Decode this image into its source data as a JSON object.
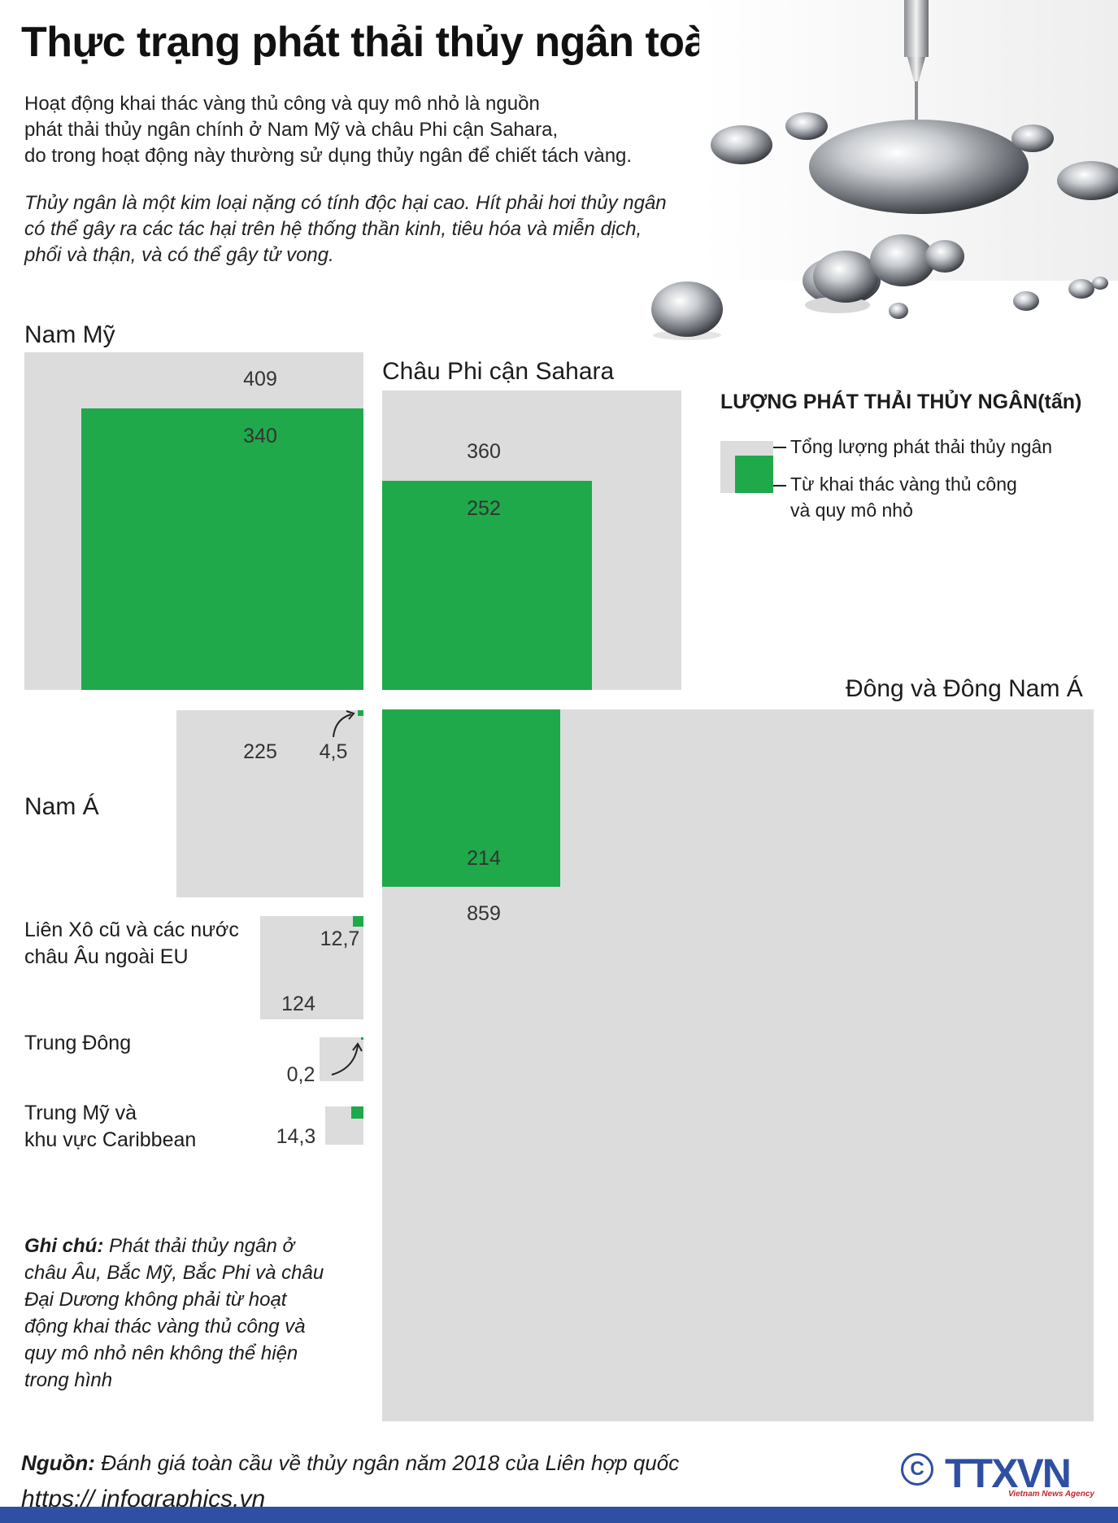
{
  "header": {
    "title": "Thực trạng phát thải thủy ngân toàn cầu",
    "intro_lines": [
      "Hoạt động khai thác vàng thủ công và quy mô nhỏ là nguồn",
      "phát thải thủy ngân chính ở Nam Mỹ và châu Phi cận Sahara,",
      "do trong hoạt động này thường sử dụng thủy ngân để chiết tách vàng."
    ],
    "warning_lines": [
      "Thủy ngân là một kim loại nặng có tính độc hại cao. Hít phải hơi thủy ngân",
      "có thể gây ra các tác hại trên hệ thống thần kinh, tiêu hóa và miễn dịch,",
      "phổi và thận, và có thể gây tử vong."
    ]
  },
  "legend": {
    "title": "LƯỢNG PHÁT THẢI THỦY NGÂN(tấn)",
    "total_label": "Tổng lượng phát thải thủy ngân",
    "asgm_label_1": "Từ khai thác vàng thủ công",
    "asgm_label_2": "và quy mô nhỏ"
  },
  "colors": {
    "total": "#dcdcdc",
    "asgm": "#1fa94b",
    "brand": "#2f4fa3"
  },
  "chart_data": {
    "type": "proportional-area squares",
    "unit": "tấn",
    "series": [
      {
        "name": "Tổng lượng phát thải thủy ngân"
      },
      {
        "name": "Từ khai thác vàng thủ công và quy mô nhỏ"
      }
    ],
    "regions": [
      {
        "id": "nam-my",
        "name": "Nam Mỹ",
        "total": 409,
        "asgm": 340,
        "total_label": "409",
        "asgm_label": "340"
      },
      {
        "id": "chau-phi",
        "name": "Châu Phi cận Sahara",
        "total": 360,
        "asgm": 252,
        "total_label": "360",
        "asgm_label": "252"
      },
      {
        "id": "dong-nam-a",
        "name": "Đông và Đông Nam Á",
        "total": 859,
        "asgm": 214,
        "total_label": "859",
        "asgm_label": "214"
      },
      {
        "id": "nam-a",
        "name": "Nam Á",
        "total": 225,
        "asgm": 4.5,
        "total_label": "225",
        "asgm_label": "4,5"
      },
      {
        "id": "lien-xo",
        "name_line1": "Liên Xô cũ và các nước",
        "name_line2": "châu Âu ngoài EU",
        "total": 124,
        "asgm": 12.7,
        "total_label": "124",
        "asgm_label": "12,7"
      },
      {
        "id": "trung-dong",
        "name": "Trung Đông",
        "total": 12,
        "asgm": 0.2,
        "asgm_label": "0,2"
      },
      {
        "id": "trung-my",
        "name_line1": "Trung Mỹ và",
        "name_line2": "khu vực Caribbean",
        "total": 14.3,
        "asgm": 14.3,
        "asgm_label": "14,3"
      }
    ]
  },
  "note": {
    "label": "Ghi chú:",
    "text": " Phát thải thủy ngân ở châu Âu, Bắc Mỹ, Bắc Phi và châu Đại Dương không phải từ hoạt động khai thác vàng thủ công và quy mô nhỏ nên không thể hiện trong hình"
  },
  "footer": {
    "source_label": "Nguồn:",
    "source_text": " Đánh giá toàn cầu về thủy ngân năm 2018 của Liên hợp quốc",
    "website": "https:// infographics.vn",
    "copyright": "C",
    "logo": "TTXVN",
    "logo_sub": "Vietnam News Agency"
  }
}
